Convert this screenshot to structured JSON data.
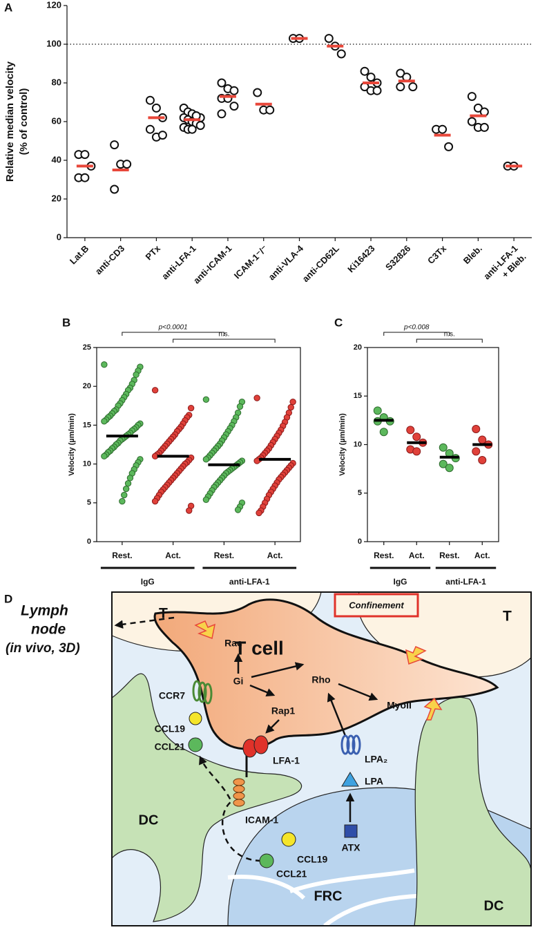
{
  "chart_data": [
    {
      "type": "dot",
      "panel": "A",
      "ylabel": [
        "Relative median velocity",
        "(% of control)"
      ],
      "categories": [
        "Lat.B",
        "anti-CD3",
        "PTx",
        "anti-LFA-1",
        "anti-ICAM-1",
        "ICAM-1⁻/⁻",
        "anti-VLA-4",
        "anti-CD62L",
        "Ki16423",
        "S32826",
        "C3Tx",
        "Bleb.",
        [
          "anti-LFA-1",
          "+ Bleb."
        ]
      ],
      "points": [
        [
          43,
          43,
          37,
          31,
          31
        ],
        [
          48,
          38,
          38,
          25
        ],
        [
          71,
          67,
          62,
          56,
          52,
          53
        ],
        [
          67,
          65,
          64,
          63,
          62,
          62,
          61,
          60,
          59,
          58,
          57,
          56,
          56,
          63
        ],
        [
          80,
          77,
          76,
          72,
          72,
          68,
          64
        ],
        [
          75,
          66,
          66
        ],
        [
          103,
          103
        ],
        [
          103,
          99,
          95
        ],
        [
          86,
          83,
          80,
          78,
          76,
          76
        ],
        [
          85,
          83,
          78,
          78
        ],
        [
          56,
          56,
          47
        ],
        [
          73,
          67,
          65,
          60,
          57,
          57
        ],
        [
          37,
          37
        ]
      ],
      "medians": [
        37,
        35,
        62,
        61,
        73,
        69,
        103,
        99,
        80,
        81,
        53,
        63,
        37
      ],
      "point_colors": [
        "#ffffff"
      ],
      "median_color": "#e8473a",
      "reference_line": 100,
      "ylim": [
        0,
        120
      ],
      "yticks": [
        0,
        20,
        40,
        60,
        80,
        100,
        120
      ]
    },
    {
      "type": "dot",
      "panel": "B",
      "ylabel": [
        "Velocity (µm/min)"
      ],
      "categories": [
        "Rest.",
        "Act.",
        "Rest.",
        "Act."
      ],
      "group_labels": [
        "IgG",
        "anti-LFA-1"
      ],
      "annotations": [
        "p<0.0001",
        "n.s."
      ],
      "points": [
        [
          22.8,
          22.5,
          22.0,
          21.5,
          20.8,
          20.3,
          19.8,
          19.5,
          19.0,
          18.6,
          18.2,
          17.8,
          17.5,
          17.0,
          16.8,
          16.5,
          16.2,
          16.0,
          15.7,
          15.5,
          15.2,
          15.0,
          14.7,
          14.5,
          14.3,
          14.0,
          13.8,
          13.6,
          13.4,
          13.2,
          13.0,
          12.7,
          12.5,
          12.2,
          12.0,
          11.7,
          11.5,
          11.2,
          11.0,
          10.6,
          10.2,
          9.8,
          9.3,
          8.8,
          8.2,
          7.5,
          6.8,
          6.0,
          5.2
        ],
        [
          19.5,
          17.2,
          16.3,
          16.0,
          15.6,
          15.2,
          14.8,
          14.5,
          14.2,
          13.8,
          13.5,
          13.2,
          12.9,
          12.6,
          12.3,
          12.0,
          11.7,
          11.4,
          11.2,
          11.0,
          10.8,
          10.5,
          10.2,
          10.0,
          9.7,
          9.4,
          9.1,
          8.8,
          8.5,
          8.2,
          7.9,
          7.6,
          7.3,
          7.0,
          6.7,
          6.4,
          6.0,
          5.6,
          5.2,
          4.6,
          4.0
        ],
        [
          18.3,
          18.0,
          17.4,
          16.6,
          16.0,
          15.5,
          15.0,
          14.6,
          14.2,
          13.8,
          13.4,
          13.0,
          12.6,
          12.3,
          12.0,
          11.7,
          11.4,
          11.1,
          10.8,
          10.6,
          10.4,
          10.2,
          10.0,
          9.8,
          9.6,
          9.4,
          9.2,
          9.0,
          8.8,
          8.5,
          8.2,
          7.9,
          7.6,
          7.3,
          7.0,
          6.6,
          6.2,
          5.8,
          5.4,
          5.0,
          4.5,
          4.1
        ],
        [
          18.5,
          18.0,
          17.3,
          16.6,
          16.0,
          15.4,
          14.9,
          14.4,
          14.0,
          13.6,
          13.2,
          12.8,
          12.4,
          12.0,
          11.7,
          11.4,
          11.1,
          10.8,
          10.6,
          10.4,
          10.1,
          9.8,
          9.5,
          9.2,
          8.9,
          8.6,
          8.3,
          8.0,
          7.6,
          7.2,
          6.8,
          6.4,
          6.0,
          5.5,
          5.0,
          4.5,
          4.0,
          3.7
        ]
      ],
      "medians": [
        13.6,
        11.0,
        9.9,
        10.6
      ],
      "point_colors": [
        "#5cb85c",
        "#e0413a",
        "#5cb85c",
        "#e0413a"
      ],
      "median_color": "#000000",
      "ylim": [
        0,
        25
      ],
      "yticks": [
        0,
        5,
        10,
        15,
        20,
        25
      ]
    },
    {
      "type": "dot",
      "panel": "C",
      "ylabel": [
        "Velocity (µm/min)"
      ],
      "categories": [
        "Rest.",
        "Act.",
        "Rest.",
        "Act."
      ],
      "group_labels": [
        "IgG",
        "anti-LFA-1"
      ],
      "annotations": [
        "p<0.008",
        "n.s."
      ],
      "points": [
        [
          13.5,
          12.8,
          12.4,
          12.4,
          11.3
        ],
        [
          11.5,
          10.8,
          10.2,
          9.5,
          9.3
        ],
        [
          9.7,
          9.1,
          8.6,
          8.0,
          7.6
        ],
        [
          11.6,
          10.5,
          10.0,
          9.3,
          8.4
        ]
      ],
      "medians": [
        12.5,
        10.2,
        8.7,
        10.0
      ],
      "point_colors": [
        "#5cb85c",
        "#e0413a",
        "#5cb85c",
        "#e0413a"
      ],
      "median_color": "#000000",
      "ylim": [
        0,
        20
      ],
      "yticks": [
        0,
        5,
        10,
        15,
        20
      ]
    }
  ],
  "diagram": {
    "panel": "D",
    "title": [
      "Lymph",
      "node",
      "(in vivo, 3D)"
    ],
    "labels": [
      "T",
      "T",
      "Confinement",
      "T cell",
      "Rac",
      "Gi",
      "Rho",
      "Rap1",
      "MyoII",
      "CCR7",
      "CCL19",
      "CCL21",
      "LFA-1",
      "LPA₂",
      "LPA",
      "ICAM-1",
      "ATX",
      "DC",
      "CCL19",
      "CCL21",
      "FRC",
      "DC"
    ]
  }
}
